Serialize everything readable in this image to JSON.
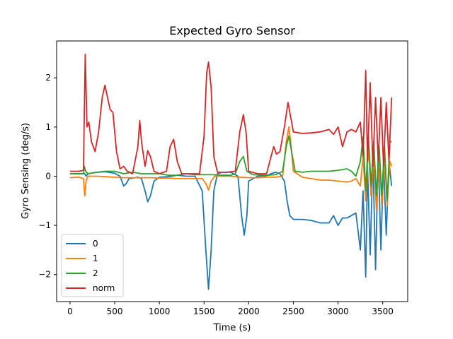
{
  "chart_data": {
    "type": "line",
    "title": "Expected Gyro Sensor",
    "xlabel": "Time (s)",
    "ylabel": "Gyro Sensing (deg/s)",
    "xlim": [
      -150,
      3780
    ],
    "ylim": [
      -2.55,
      2.75
    ],
    "xticks": [
      0,
      500,
      1000,
      1500,
      2000,
      2500,
      3000,
      3500
    ],
    "yticks": [
      -2,
      -1,
      0,
      1,
      2
    ],
    "grid": false,
    "legend_position": "lower-left",
    "series": [
      {
        "name": "0",
        "color": "#1f77b4",
        "points": [
          [
            0,
            0.05
          ],
          [
            100,
            0.05
          ],
          [
            165,
            0.05
          ],
          [
            180,
            0.0
          ],
          [
            200,
            0.05
          ],
          [
            300,
            0.08
          ],
          [
            400,
            0.09
          ],
          [
            500,
            0.06
          ],
          [
            560,
            0.0
          ],
          [
            600,
            -0.2
          ],
          [
            630,
            -0.15
          ],
          [
            660,
            -0.05
          ],
          [
            700,
            -0.04
          ],
          [
            760,
            -0.02
          ],
          [
            800,
            -0.05
          ],
          [
            840,
            -0.3
          ],
          [
            870,
            -0.52
          ],
          [
            900,
            -0.4
          ],
          [
            940,
            -0.1
          ],
          [
            1000,
            -0.02
          ],
          [
            1100,
            -0.01
          ],
          [
            1200,
            0.02
          ],
          [
            1300,
            0.0
          ],
          [
            1400,
            0.0
          ],
          [
            1480,
            -0.3
          ],
          [
            1520,
            -1.5
          ],
          [
            1550,
            -2.3
          ],
          [
            1580,
            -1.5
          ],
          [
            1610,
            -0.3
          ],
          [
            1650,
            0.05
          ],
          [
            1700,
            0.08
          ],
          [
            1800,
            0.08
          ],
          [
            1880,
            0.0
          ],
          [
            1920,
            -0.8
          ],
          [
            1950,
            -1.2
          ],
          [
            1980,
            -0.8
          ],
          [
            2000,
            -0.1
          ],
          [
            2100,
            0.0
          ],
          [
            2200,
            0.01
          ],
          [
            2250,
            0.05
          ],
          [
            2300,
            0.08
          ],
          [
            2350,
            0.05
          ],
          [
            2400,
            -0.1
          ],
          [
            2430,
            -0.5
          ],
          [
            2460,
            -0.8
          ],
          [
            2500,
            -0.88
          ],
          [
            2600,
            -0.88
          ],
          [
            2700,
            -0.9
          ],
          [
            2800,
            -0.95
          ],
          [
            2900,
            -0.95
          ],
          [
            2950,
            -0.8
          ],
          [
            3000,
            -1.0
          ],
          [
            3050,
            -0.85
          ],
          [
            3100,
            -0.85
          ],
          [
            3150,
            -0.8
          ],
          [
            3200,
            -0.75
          ],
          [
            3250,
            -1.5
          ],
          [
            3280,
            -0.3
          ],
          [
            3310,
            -2.05
          ],
          [
            3330,
            0.2
          ],
          [
            3360,
            -1.6
          ],
          [
            3390,
            0.4
          ],
          [
            3420,
            -1.9
          ],
          [
            3450,
            0.5
          ],
          [
            3480,
            -1.5
          ],
          [
            3510,
            0.3
          ],
          [
            3540,
            -1.2
          ],
          [
            3570,
            0.3
          ],
          [
            3600,
            -0.2
          ]
        ]
      },
      {
        "name": "1",
        "color": "#ff7f0e",
        "points": [
          [
            0,
            -0.03
          ],
          [
            100,
            -0.02
          ],
          [
            150,
            -0.05
          ],
          [
            165,
            -0.4
          ],
          [
            180,
            -0.1
          ],
          [
            200,
            0.0
          ],
          [
            300,
            0.0
          ],
          [
            400,
            -0.01
          ],
          [
            500,
            -0.02
          ],
          [
            600,
            -0.03
          ],
          [
            700,
            -0.03
          ],
          [
            800,
            -0.03
          ],
          [
            900,
            -0.03
          ],
          [
            1000,
            -0.04
          ],
          [
            1100,
            -0.04
          ],
          [
            1200,
            -0.05
          ],
          [
            1300,
            -0.05
          ],
          [
            1400,
            -0.05
          ],
          [
            1480,
            -0.05
          ],
          [
            1520,
            -0.15
          ],
          [
            1550,
            -0.28
          ],
          [
            1580,
            -0.1
          ],
          [
            1620,
            0.0
          ],
          [
            1700,
            0.0
          ],
          [
            1800,
            0.0
          ],
          [
            1900,
            -0.02
          ],
          [
            2000,
            -0.03
          ],
          [
            2100,
            -0.03
          ],
          [
            2200,
            -0.02
          ],
          [
            2300,
            -0.02
          ],
          [
            2380,
            0.0
          ],
          [
            2420,
            0.7
          ],
          [
            2450,
            1.0
          ],
          [
            2470,
            0.7
          ],
          [
            2500,
            0.1
          ],
          [
            2600,
            -0.02
          ],
          [
            2700,
            -0.05
          ],
          [
            2800,
            -0.08
          ],
          [
            2900,
            -0.08
          ],
          [
            3000,
            -0.1
          ],
          [
            3100,
            -0.12
          ],
          [
            3150,
            -0.1
          ],
          [
            3200,
            -0.05
          ],
          [
            3250,
            -0.2
          ],
          [
            3280,
            0.4
          ],
          [
            3310,
            -0.5
          ],
          [
            3340,
            0.6
          ],
          [
            3370,
            -0.4
          ],
          [
            3400,
            0.4
          ],
          [
            3430,
            -0.7
          ],
          [
            3460,
            0.5
          ],
          [
            3490,
            -0.6
          ],
          [
            3520,
            0.4
          ],
          [
            3550,
            -0.6
          ],
          [
            3580,
            0.3
          ],
          [
            3600,
            0.2
          ]
        ]
      },
      {
        "name": "2",
        "color": "#2ca02c",
        "points": [
          [
            0,
            0.05
          ],
          [
            100,
            0.05
          ],
          [
            150,
            0.05
          ],
          [
            160,
            0.2
          ],
          [
            175,
            0.1
          ],
          [
            200,
            0.05
          ],
          [
            300,
            0.08
          ],
          [
            400,
            0.1
          ],
          [
            500,
            0.1
          ],
          [
            600,
            0.05
          ],
          [
            700,
            0.08
          ],
          [
            800,
            0.05
          ],
          [
            900,
            0.05
          ],
          [
            1000,
            0.05
          ],
          [
            1100,
            0.02
          ],
          [
            1200,
            0.02
          ],
          [
            1300,
            0.05
          ],
          [
            1400,
            0.03
          ],
          [
            1500,
            0.03
          ],
          [
            1600,
            0.03
          ],
          [
            1700,
            0.02
          ],
          [
            1800,
            0.02
          ],
          [
            1850,
            0.05
          ],
          [
            1900,
            0.3
          ],
          [
            1940,
            0.4
          ],
          [
            1980,
            0.1
          ],
          [
            2050,
            0.03
          ],
          [
            2200,
            0.02
          ],
          [
            2300,
            0.03
          ],
          [
            2380,
            0.1
          ],
          [
            2420,
            0.6
          ],
          [
            2450,
            0.82
          ],
          [
            2480,
            0.5
          ],
          [
            2520,
            0.1
          ],
          [
            2600,
            0.08
          ],
          [
            2700,
            0.1
          ],
          [
            2800,
            0.1
          ],
          [
            2900,
            0.1
          ],
          [
            3000,
            0.12
          ],
          [
            3100,
            0.15
          ],
          [
            3150,
            0.1
          ],
          [
            3200,
            0.0
          ],
          [
            3250,
            0.3
          ],
          [
            3280,
            0.8
          ],
          [
            3310,
            -0.3
          ],
          [
            3340,
            0.8
          ],
          [
            3370,
            -0.2
          ],
          [
            3400,
            0.7
          ],
          [
            3430,
            -0.4
          ],
          [
            3460,
            0.6
          ],
          [
            3490,
            -0.4
          ],
          [
            3520,
            0.6
          ],
          [
            3550,
            -0.5
          ],
          [
            3580,
            0.7
          ],
          [
            3600,
            0.7
          ]
        ]
      },
      {
        "name": "norm",
        "color": "#d62728",
        "points": [
          [
            0,
            0.1
          ],
          [
            100,
            0.1
          ],
          [
            150,
            0.12
          ],
          [
            170,
            2.48
          ],
          [
            190,
            1.0
          ],
          [
            210,
            1.1
          ],
          [
            240,
            0.7
          ],
          [
            280,
            0.5
          ],
          [
            320,
            0.9
          ],
          [
            360,
            1.6
          ],
          [
            390,
            1.85
          ],
          [
            420,
            1.6
          ],
          [
            450,
            1.35
          ],
          [
            480,
            1.3
          ],
          [
            520,
            0.5
          ],
          [
            560,
            0.15
          ],
          [
            600,
            0.2
          ],
          [
            640,
            0.1
          ],
          [
            700,
            0.05
          ],
          [
            760,
            0.6
          ],
          [
            780,
            1.13
          ],
          [
            800,
            0.7
          ],
          [
            840,
            0.2
          ],
          [
            870,
            0.52
          ],
          [
            900,
            0.4
          ],
          [
            940,
            0.1
          ],
          [
            1000,
            0.05
          ],
          [
            1080,
            0.1
          ],
          [
            1120,
            0.6
          ],
          [
            1160,
            0.75
          ],
          [
            1200,
            0.3
          ],
          [
            1250,
            0.05
          ],
          [
            1350,
            0.05
          ],
          [
            1450,
            0.05
          ],
          [
            1500,
            0.8
          ],
          [
            1530,
            2.1
          ],
          [
            1550,
            2.32
          ],
          [
            1580,
            1.8
          ],
          [
            1610,
            0.4
          ],
          [
            1650,
            0.08
          ],
          [
            1750,
            0.08
          ],
          [
            1850,
            0.1
          ],
          [
            1900,
            0.9
          ],
          [
            1940,
            1.25
          ],
          [
            1970,
            0.9
          ],
          [
            2000,
            0.1
          ],
          [
            2100,
            0.05
          ],
          [
            2200,
            0.05
          ],
          [
            2250,
            0.4
          ],
          [
            2280,
            0.6
          ],
          [
            2310,
            0.45
          ],
          [
            2350,
            0.5
          ],
          [
            2400,
            1.0
          ],
          [
            2440,
            1.5
          ],
          [
            2470,
            1.2
          ],
          [
            2500,
            0.9
          ],
          [
            2600,
            0.87
          ],
          [
            2700,
            0.88
          ],
          [
            2800,
            0.9
          ],
          [
            2900,
            0.95
          ],
          [
            2950,
            0.85
          ],
          [
            3000,
            1.0
          ],
          [
            3050,
            0.6
          ],
          [
            3100,
            0.9
          ],
          [
            3150,
            0.95
          ],
          [
            3200,
            0.9
          ],
          [
            3250,
            1.1
          ],
          [
            3280,
            0.4
          ],
          [
            3310,
            2.15
          ],
          [
            3330,
            0.3
          ],
          [
            3360,
            1.9
          ],
          [
            3390,
            0.2
          ],
          [
            3420,
            1.6
          ],
          [
            3450,
            0.3
          ],
          [
            3480,
            1.6
          ],
          [
            3510,
            0.2
          ],
          [
            3540,
            1.5
          ],
          [
            3570,
            0.3
          ],
          [
            3600,
            1.6
          ]
        ]
      }
    ]
  }
}
